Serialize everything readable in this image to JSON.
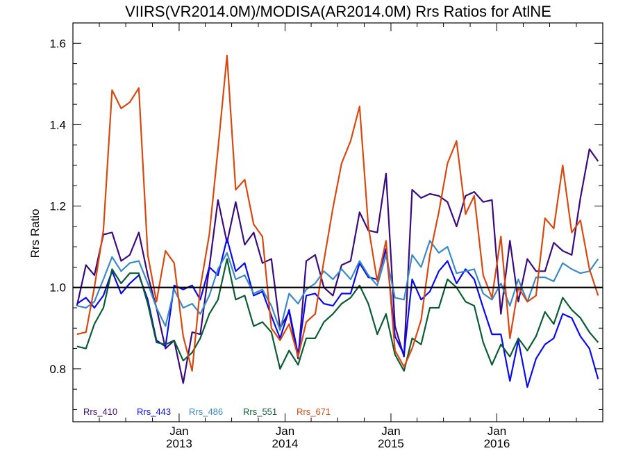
{
  "chart_data": {
    "type": "line",
    "title": "VIIRS(VR2014.0M)/MODISA(AR2014.0M)  Rrs Ratios for AtlNE",
    "xlabel": "",
    "ylabel": "Rrs Ratio",
    "xlim": [
      "2012-01-01",
      "2016-12-31"
    ],
    "ylim": [
      0.67,
      1.65
    ],
    "yticks": [
      {
        "value": 0.8,
        "label": "0.8"
      },
      {
        "value": 1.0,
        "label": "1.0"
      },
      {
        "value": 1.2,
        "label": "1.2"
      },
      {
        "value": 1.4,
        "label": "1.4"
      },
      {
        "value": 1.6,
        "label": "1.6"
      }
    ],
    "xticks": [
      {
        "date": "2013-01-01",
        "month": "Jan",
        "year": "2013"
      },
      {
        "date": "2014-01-01",
        "month": "Jan",
        "year": "2014"
      },
      {
        "date": "2015-01-01",
        "month": "Jan",
        "year": "2015"
      },
      {
        "date": "2016-01-01",
        "month": "Jan",
        "year": "2016"
      }
    ],
    "reference_line": 1.0,
    "legend_placement": "bottom-left",
    "x": [
      "2012-01-15",
      "2012-02-15",
      "2012-03-15",
      "2012-04-15",
      "2012-05-15",
      "2012-06-15",
      "2012-07-15",
      "2012-08-15",
      "2012-09-15",
      "2012-10-15",
      "2012-11-15",
      "2012-12-15",
      "2013-01-15",
      "2013-02-15",
      "2013-03-15",
      "2013-04-15",
      "2013-05-15",
      "2013-06-15",
      "2013-07-15",
      "2013-08-15",
      "2013-09-15",
      "2013-10-15",
      "2013-11-15",
      "2013-12-15",
      "2014-01-15",
      "2014-02-15",
      "2014-03-15",
      "2014-04-15",
      "2014-05-15",
      "2014-06-15",
      "2014-07-15",
      "2014-08-15",
      "2014-09-15",
      "2014-10-15",
      "2014-11-15",
      "2014-12-15",
      "2015-01-15",
      "2015-02-15",
      "2015-03-15",
      "2015-04-15",
      "2015-05-15",
      "2015-06-15",
      "2015-07-15",
      "2015-08-15",
      "2015-09-15",
      "2015-10-15",
      "2015-11-15",
      "2015-12-15",
      "2016-01-15",
      "2016-02-15",
      "2016-03-15",
      "2016-04-15",
      "2016-05-15",
      "2016-06-15",
      "2016-07-15",
      "2016-08-15",
      "2016-09-15",
      "2016-10-15",
      "2016-11-15",
      "2016-12-15"
    ],
    "series": [
      {
        "name": "Rrs_410",
        "color": "#3b0a7d",
        "values": [
          0.955,
          1.055,
          1.03,
          1.13,
          1.135,
          1.065,
          1.08,
          1.135,
          1.03,
          0.95,
          0.85,
          0.87,
          0.765,
          0.89,
          0.885,
          1.05,
          1.215,
          1.11,
          1.21,
          1.105,
          1.135,
          1.06,
          1.07,
          0.9,
          0.94,
          0.825,
          1.065,
          1.08,
          1.0,
          0.98,
          1.055,
          1.065,
          1.185,
          1.14,
          1.135,
          1.28,
          0.905,
          0.83,
          1.24,
          1.22,
          1.23,
          1.225,
          1.21,
          1.15,
          1.225,
          1.235,
          1.21,
          1.215,
          0.935,
          1.115,
          0.965,
          1.07,
          1.04,
          1.04,
          1.11,
          1.09,
          1.08,
          1.22,
          1.34,
          1.31
        ]
      },
      {
        "name": "Rrs_443",
        "color": "#0a0af0",
        "values": [
          0.96,
          0.975,
          0.95,
          0.98,
          1.04,
          0.985,
          1.01,
          1.03,
          0.97,
          0.87,
          0.855,
          1.005,
          0.995,
          1.005,
          0.97,
          1.05,
          1.03,
          1.12,
          1.04,
          1.06,
          0.98,
          0.99,
          0.93,
          0.875,
          0.945,
          0.835,
          0.98,
          0.985,
          0.96,
          0.955,
          0.985,
          0.985,
          1.06,
          1.025,
          1.02,
          1.095,
          0.88,
          0.835,
          1.02,
          0.97,
          0.99,
          1.04,
          1.065,
          1.01,
          1.045,
          1.02,
          0.95,
          0.885,
          0.885,
          0.77,
          0.87,
          0.755,
          0.825,
          0.86,
          0.875,
          0.935,
          0.925,
          0.88,
          0.85,
          0.775
        ]
      },
      {
        "name": "Rrs_486",
        "color": "#3a8ac8",
        "values": [
          0.955,
          0.95,
          0.965,
          1.02,
          1.075,
          1.04,
          1.06,
          1.065,
          1.01,
          0.95,
          0.905,
          0.995,
          0.95,
          0.96,
          0.935,
          0.98,
          1.045,
          1.085,
          1.02,
          1.03,
          0.985,
          0.995,
          0.955,
          0.895,
          0.985,
          0.96,
          0.995,
          1.01,
          1.04,
          1.02,
          1.045,
          1.02,
          1.065,
          1.03,
          1.005,
          1.08,
          0.975,
          0.97,
          1.08,
          1.05,
          1.115,
          1.085,
          1.1,
          1.035,
          1.04,
          1.045,
          0.985,
          0.97,
          1.01,
          0.955,
          1.02,
          0.965,
          1.025,
          1.025,
          1.015,
          1.06,
          1.045,
          1.035,
          1.04,
          1.07
        ]
      },
      {
        "name": "Rrs_551",
        "color": "#0a5c32",
        "values": [
          0.855,
          0.85,
          0.91,
          0.95,
          1.045,
          1.01,
          1.035,
          1.035,
          0.96,
          0.865,
          0.86,
          0.87,
          0.82,
          0.84,
          0.875,
          0.935,
          0.97,
          1.07,
          0.97,
          0.98,
          0.905,
          0.915,
          0.89,
          0.8,
          0.845,
          0.81,
          0.875,
          0.875,
          0.915,
          0.935,
          0.96,
          0.975,
          1.005,
          0.96,
          0.885,
          0.935,
          0.835,
          0.795,
          0.875,
          0.86,
          0.95,
          0.95,
          1.02,
          1.0,
          0.965,
          0.955,
          0.865,
          0.81,
          0.86,
          0.83,
          0.875,
          0.845,
          0.88,
          0.94,
          0.91,
          0.975,
          0.945,
          0.925,
          0.89,
          0.865
        ]
      },
      {
        "name": "Rrs_671",
        "color": "#d9480f",
        "values": [
          0.885,
          0.89,
          1.0,
          1.14,
          1.485,
          1.44,
          1.455,
          1.49,
          1.08,
          0.965,
          1.09,
          1.06,
          0.88,
          0.795,
          1.0,
          1.13,
          1.34,
          1.57,
          1.24,
          1.265,
          1.155,
          1.125,
          0.9,
          0.87,
          0.91,
          0.83,
          0.915,
          0.935,
          1.065,
          1.195,
          1.305,
          1.36,
          1.445,
          1.15,
          1.015,
          1.115,
          0.845,
          0.805,
          0.85,
          0.92,
          1.08,
          1.185,
          1.305,
          1.36,
          1.18,
          1.225,
          1.03,
          0.975,
          1.125,
          0.875,
          1.0,
          0.965,
          0.98,
          1.17,
          1.145,
          1.3,
          1.135,
          1.165,
          1.045,
          0.98
        ]
      }
    ]
  }
}
